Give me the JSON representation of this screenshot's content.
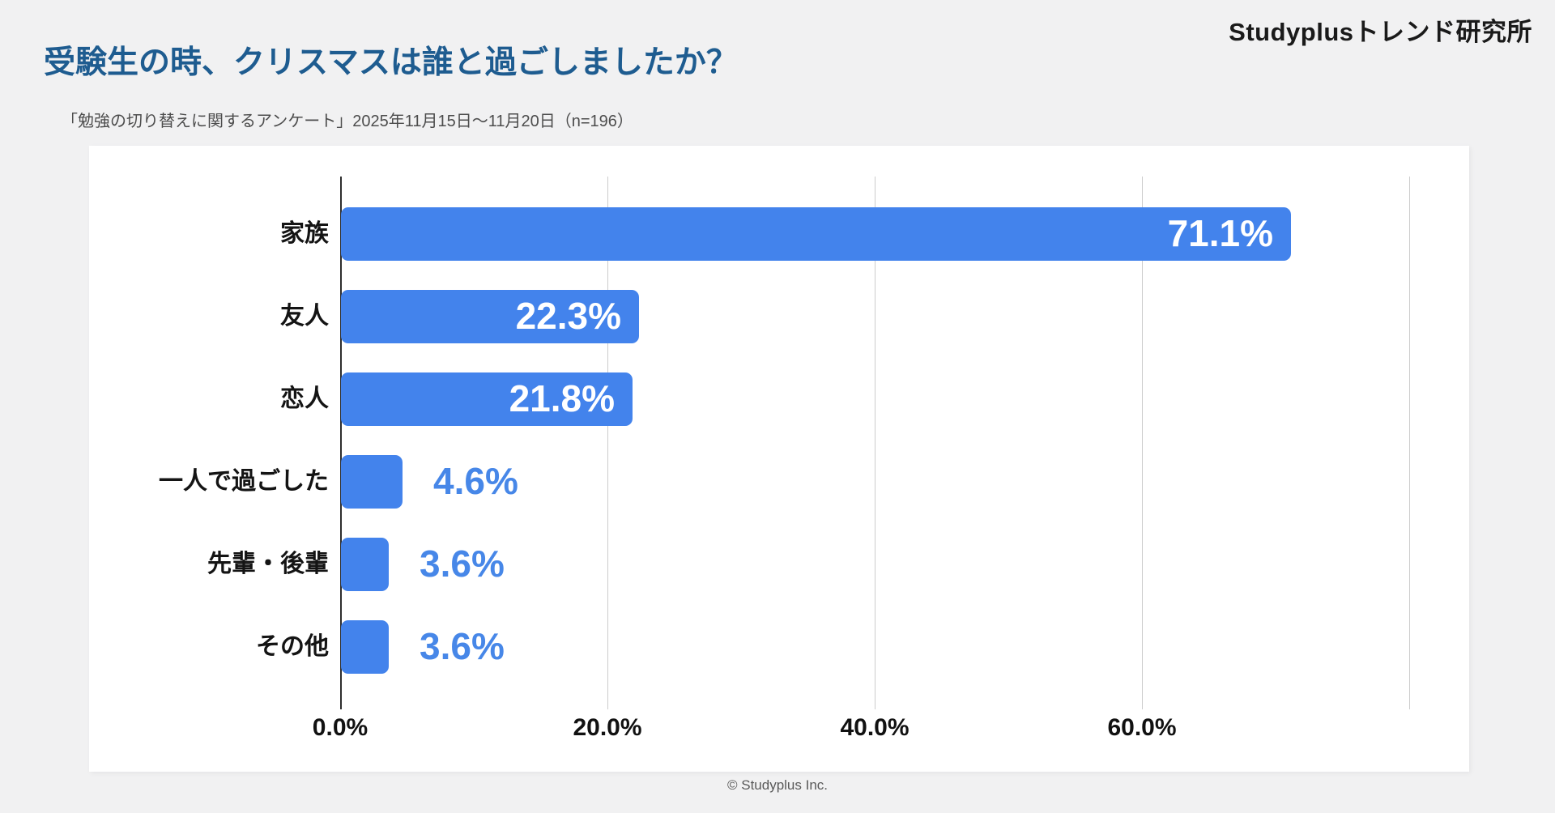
{
  "header": {
    "logo": "Studyplusトレンド研究所",
    "title": "受験生の時、クリスマスは誰と過ごしましたか？",
    "subtitle": "「勉強の切り替えに関するアンケート」2025年11月15日～11月20日（n=196）"
  },
  "footer": {
    "copyright": "© Studyplus Inc."
  },
  "colors": {
    "bar": "#4383ec",
    "value_text_outside": "#4787e8",
    "value_text_inside": "#ffffff",
    "title_text": "#1e5c90",
    "gridline": "#cccccc",
    "axis": "#2e2e2e",
    "page_background": "#f1f1f2",
    "card_background": "#ffffff"
  },
  "chart_data": {
    "type": "bar",
    "orientation": "horizontal",
    "title": "受験生の時、クリスマスは誰と過ごしましたか？",
    "categories": [
      "家族",
      "友人",
      "恋人",
      "一人で過ごした",
      "先輩・後輩",
      "その他"
    ],
    "values": [
      71.1,
      22.3,
      21.8,
      4.6,
      3.6,
      3.6
    ],
    "value_labels": [
      "71.1%",
      "22.3%",
      "21.8%",
      "4.6%",
      "3.6%",
      "3.6%"
    ],
    "xlabel": "",
    "ylabel": "",
    "xlim": [
      0,
      84
    ],
    "x_ticks": [
      {
        "value": 0,
        "label": "0.0%"
      },
      {
        "value": 20,
        "label": "20.0%"
      },
      {
        "value": 40,
        "label": "40.0%"
      },
      {
        "value": 60,
        "label": "60.0%"
      }
    ],
    "gridline_values": [
      20,
      40,
      60,
      80
    ],
    "grid": true,
    "legend": false,
    "inside_label_threshold": 10
  }
}
